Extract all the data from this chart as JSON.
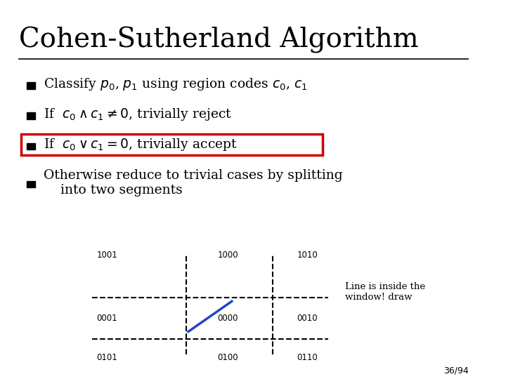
{
  "title": "Cohen-Sutherland Algorithm",
  "background_color": "#ffffff",
  "title_fontsize": 28,
  "title_font": "DejaVu Serif",
  "bullet_color": "#000000",
  "highlight_box_color": "#cc0000",
  "slide_number": "36/94",
  "bullets": [
    "Classify $p_0$, $p_1$ using region codes $c_0$, $c_1$",
    "If  $c_0 \\wedge c_1 \\neq 0$, trivially reject",
    "If  $c_0 \\vee c_1 = 0$, trivially accept",
    "Otherwise reduce to trivial cases by splitting\n    into two segments"
  ],
  "highlight_bullet_index": 2,
  "region_codes": {
    "top_left": "1001",
    "top_center": "1000",
    "top_right": "1010",
    "mid_left": "0001",
    "mid_center": "0000",
    "mid_right": "0010",
    "bot_left": "0101",
    "bot_center": "0100",
    "bot_right": "0110"
  },
  "line_color": "#2244cc",
  "line_note": "Line is inside the\nwindow! draw"
}
